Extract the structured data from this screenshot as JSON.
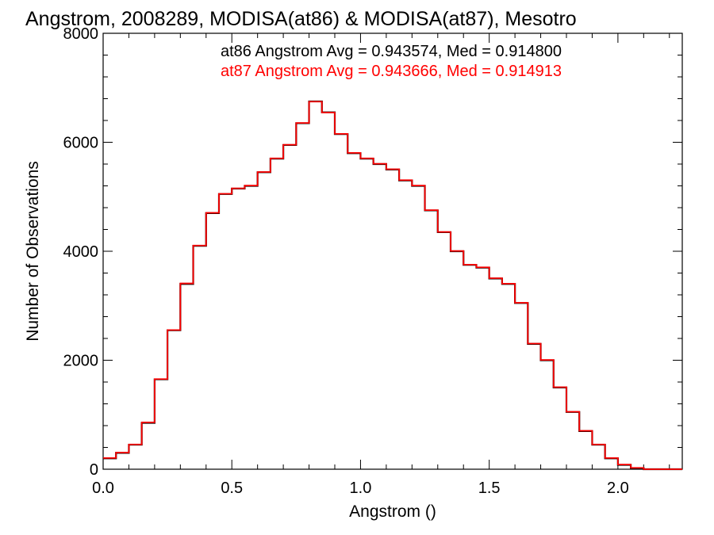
{
  "chart_data": {
    "type": "line",
    "title": "Angstrom, 2008289, MODISA(at86) & MODISA(at87), Mesotro",
    "xlabel": "Angstrom ()",
    "ylabel": "Number of Observations",
    "xlim": [
      0.0,
      2.25
    ],
    "ylim": [
      0,
      8000
    ],
    "xticks": [
      0.0,
      0.5,
      1.0,
      1.5,
      2.0
    ],
    "xtick_labels": [
      "0.0",
      "0.5",
      "1.0",
      "1.5",
      "2.0"
    ],
    "yticks": [
      0,
      2000,
      4000,
      6000,
      8000
    ],
    "ytick_labels": [
      "0",
      "2000",
      "4000",
      "6000",
      "8000"
    ],
    "legend_placement": "top-right",
    "series": [
      {
        "name": "at86 Angstrom Avg = 0.943574, Med = 0.914800",
        "color": "#000000",
        "x": [
          0.0,
          0.05,
          0.1,
          0.15,
          0.2,
          0.25,
          0.3,
          0.35,
          0.4,
          0.45,
          0.5,
          0.55,
          0.6,
          0.65,
          0.7,
          0.75,
          0.8,
          0.85,
          0.9,
          0.95,
          1.0,
          1.05,
          1.1,
          1.15,
          1.2,
          1.25,
          1.3,
          1.35,
          1.4,
          1.45,
          1.5,
          1.55,
          1.6,
          1.65,
          1.7,
          1.75,
          1.8,
          1.85,
          1.9,
          1.95,
          2.0,
          2.05,
          2.1,
          2.15,
          2.2,
          2.25
        ],
        "y": [
          200,
          300,
          450,
          850,
          1650,
          2550,
          3400,
          4100,
          4700,
          5050,
          5150,
          5200,
          5450,
          5700,
          5950,
          6350,
          6750,
          6550,
          6150,
          5800,
          5700,
          5600,
          5500,
          5300,
          5200,
          4750,
          4350,
          4000,
          3750,
          3700,
          3500,
          3400,
          3050,
          2300,
          2000,
          1500,
          1050,
          700,
          450,
          200,
          80,
          20,
          0,
          0,
          0,
          0
        ]
      },
      {
        "name": "at87 Angstrom Avg = 0.943666, Med = 0.914913",
        "color": "#ff0000",
        "x": [
          0.0,
          0.05,
          0.1,
          0.15,
          0.2,
          0.25,
          0.3,
          0.35,
          0.4,
          0.45,
          0.5,
          0.55,
          0.6,
          0.65,
          0.7,
          0.75,
          0.8,
          0.85,
          0.9,
          0.95,
          1.0,
          1.05,
          1.1,
          1.15,
          1.2,
          1.25,
          1.3,
          1.35,
          1.4,
          1.45,
          1.5,
          1.55,
          1.6,
          1.65,
          1.7,
          1.75,
          1.8,
          1.85,
          1.9,
          1.95,
          2.0,
          2.05,
          2.1,
          2.15,
          2.2,
          2.25
        ],
        "y": [
          205,
          305,
          455,
          860,
          1655,
          2555,
          3410,
          4105,
          4705,
          5055,
          5155,
          5205,
          5455,
          5705,
          5955,
          6355,
          6745,
          6545,
          6155,
          5805,
          5705,
          5605,
          5505,
          5305,
          5205,
          4755,
          4355,
          4005,
          3755,
          3705,
          3505,
          3405,
          3055,
          2305,
          2005,
          1505,
          1055,
          705,
          455,
          205,
          85,
          25,
          0,
          0,
          0,
          0
        ]
      }
    ]
  }
}
